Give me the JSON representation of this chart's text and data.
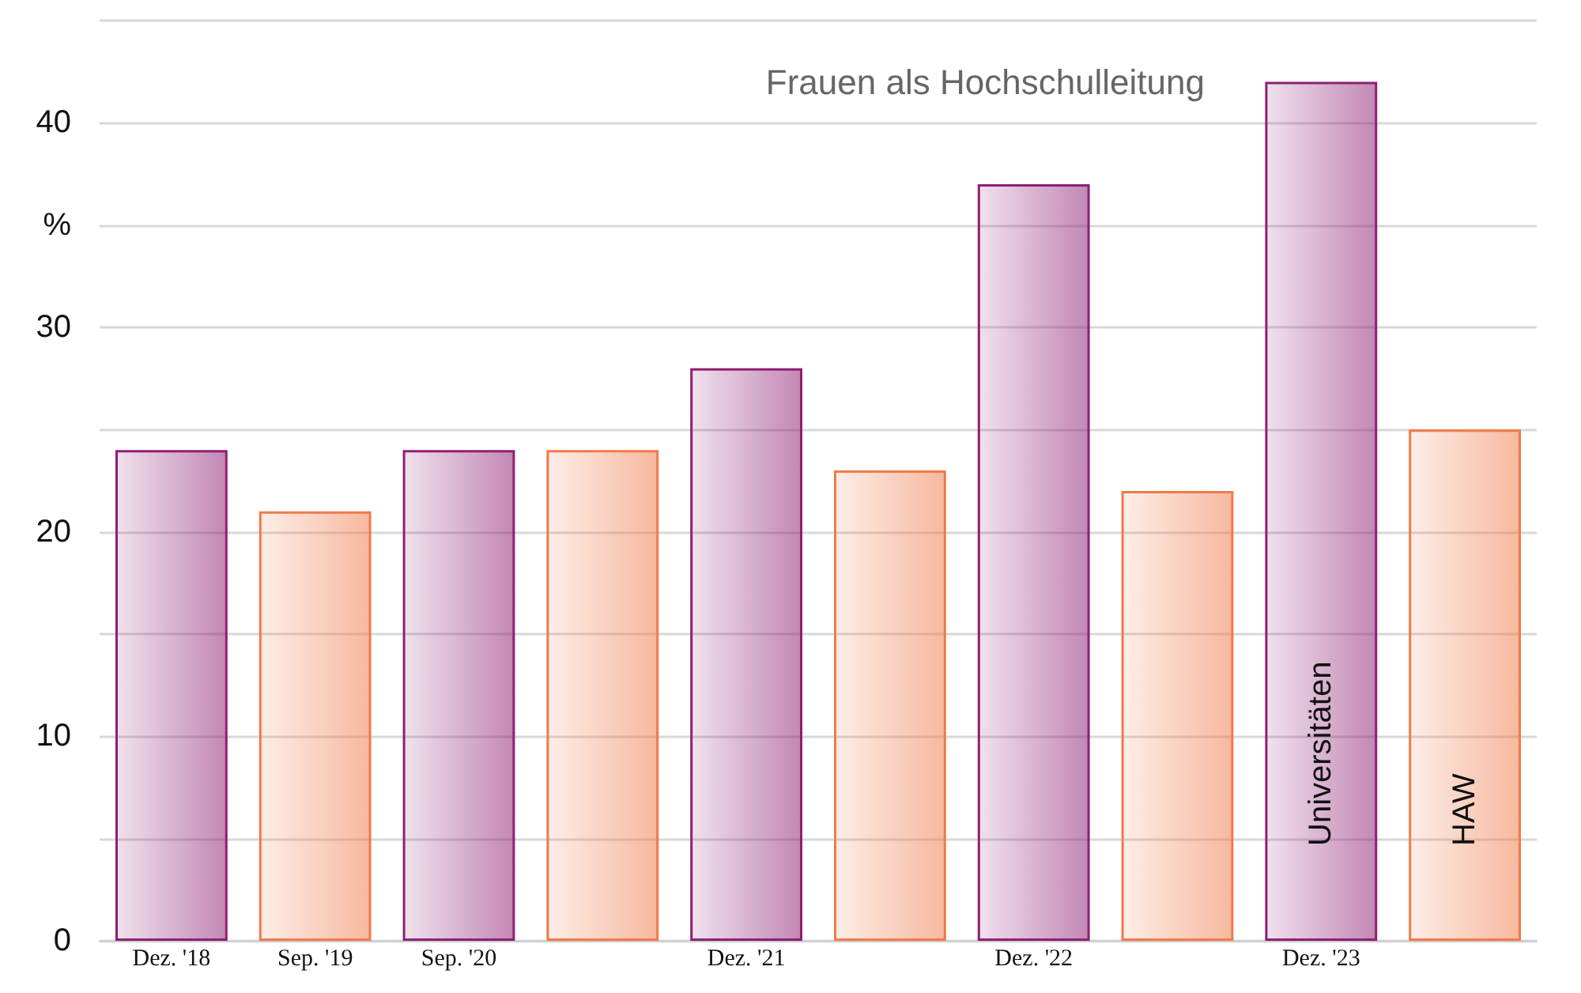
{
  "chart_data": {
    "type": "bar",
    "title": "Frauen als Hochschulleitung",
    "categories": [
      "Dez. '18",
      "Sep. '19",
      "Sep. '20",
      null,
      "Dez. '21",
      null,
      "Dez. '22",
      null,
      "Dez. '23",
      null
    ],
    "series": [
      {
        "name": "Universitäten",
        "color": "#8e1f74",
        "values": [
          24,
          null,
          24,
          null,
          28,
          null,
          37,
          null,
          42,
          null
        ]
      },
      {
        "name": "HAW",
        "color": "#f07a4a",
        "values": [
          null,
          21,
          null,
          24,
          null,
          23,
          null,
          22,
          null,
          25
        ]
      }
    ],
    "yticks": [
      0,
      {
        "value": 5,
        "label": null
      },
      10,
      {
        "value": 15,
        "label": null
      },
      20,
      {
        "value": 25,
        "label": null
      },
      30,
      {
        "value": 35,
        "label": "%"
      },
      40,
      {
        "value": 45,
        "label": null
      }
    ],
    "ylim": [
      0,
      45
    ],
    "grid": "y",
    "legend": false
  }
}
